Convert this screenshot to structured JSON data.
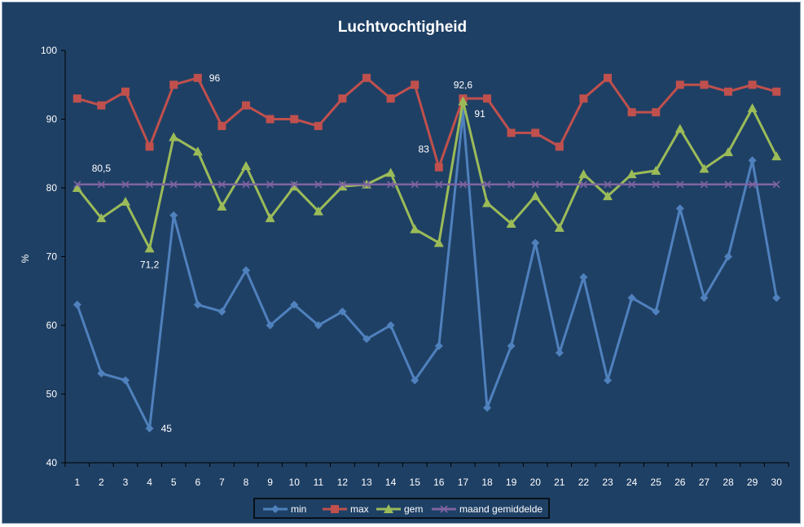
{
  "chart_data": {
    "type": "line",
    "title": "Luchtvochtigheid",
    "ylabel": "%",
    "xlabel": "",
    "ylim": [
      40,
      100
    ],
    "yticks": [
      40,
      50,
      60,
      70,
      80,
      90,
      100
    ],
    "x": [
      1,
      2,
      3,
      4,
      5,
      6,
      7,
      8,
      9,
      10,
      11,
      12,
      13,
      14,
      15,
      16,
      17,
      18,
      19,
      20,
      21,
      22,
      23,
      24,
      25,
      26,
      27,
      28,
      29,
      30
    ],
    "grid": false,
    "legend_position": "bottom",
    "series": [
      {
        "name": "min",
        "color": "#4f81bd",
        "marker": "diamond",
        "values": [
          63,
          53,
          52,
          45,
          76,
          63,
          62,
          68,
          60,
          63,
          60,
          62,
          58,
          60,
          52,
          57,
          91,
          48,
          57,
          72,
          56,
          67,
          52,
          64,
          62,
          77,
          64,
          70,
          84,
          64
        ]
      },
      {
        "name": "max",
        "color": "#c0504d",
        "marker": "square",
        "values": [
          93,
          92,
          94,
          86,
          95,
          96,
          89,
          92,
          90,
          90,
          89,
          93,
          96,
          93,
          95,
          83,
          93,
          93,
          88,
          88,
          86,
          93,
          96,
          91,
          91,
          95,
          95,
          94,
          95,
          94
        ]
      },
      {
        "name": "gem",
        "color": "#9bbb59",
        "marker": "triangle",
        "values": [
          80,
          75.6,
          78,
          71.2,
          87.4,
          85.3,
          77.3,
          83.2,
          75.6,
          80.2,
          76.6,
          80.2,
          80.5,
          82.2,
          74,
          72,
          92.6,
          77.8,
          74.8,
          78.8,
          74.2,
          82,
          78.8,
          82,
          82.5,
          88.6,
          82.8,
          85.2,
          91.6,
          84.6
        ]
      },
      {
        "name": "maand gemiddelde",
        "color": "#8064a2",
        "marker": "x",
        "values": [
          80.5,
          80.5,
          80.5,
          80.5,
          80.5,
          80.5,
          80.5,
          80.5,
          80.5,
          80.5,
          80.5,
          80.5,
          80.5,
          80.5,
          80.5,
          80.5,
          80.5,
          80.5,
          80.5,
          80.5,
          80.5,
          80.5,
          80.5,
          80.5,
          80.5,
          80.5,
          80.5,
          80.5,
          80.5,
          80.5
        ]
      }
    ],
    "annotations": [
      {
        "text": "80,5",
        "series": "maand gemiddelde",
        "x": 2
      },
      {
        "text": "71,2",
        "series": "gem",
        "x": 4
      },
      {
        "text": "45",
        "series": "min",
        "x": 4
      },
      {
        "text": "96",
        "series": "max",
        "x": 6
      },
      {
        "text": "83",
        "series": "max",
        "x": 16
      },
      {
        "text": "92,6",
        "series": "gem",
        "x": 17
      },
      {
        "text": "91",
        "series": "min",
        "x": 17
      }
    ]
  }
}
